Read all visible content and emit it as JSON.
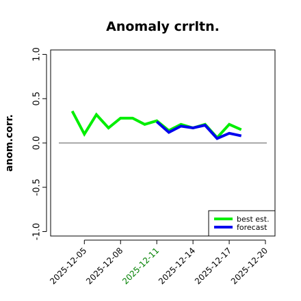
{
  "chart_data": {
    "type": "line",
    "title": "Anomaly crrltn.",
    "ylabel": "anom.corr.",
    "xlabel": "",
    "ylim": [
      -1.05,
      1.05
    ],
    "yticks": [
      -1.0,
      -0.5,
      0.0,
      0.5,
      1.0
    ],
    "ytick_labels": [
      "-1.0",
      "-0.5",
      "0.0",
      "0.5",
      "1.0"
    ],
    "x": [
      "2025-12-04",
      "2025-12-05",
      "2025-12-06",
      "2025-12-07",
      "2025-12-08",
      "2025-12-09",
      "2025-12-10",
      "2025-12-11",
      "2025-12-12",
      "2025-12-13",
      "2025-12-14",
      "2025-12-15",
      "2025-12-16",
      "2025-12-17",
      "2025-12-18"
    ],
    "xticks": [
      "2025-12-05",
      "2025-12-08",
      "2025-12-11",
      "2025-12-14",
      "2025-12-17",
      "2025-12-20"
    ],
    "xtick_labels": [
      "2025-12-05",
      "2025-12-08",
      "2025-12-11",
      "2025-12-14",
      "2025-12-17",
      "2025-12-20"
    ],
    "xtick_colors": [
      "#000000",
      "#000000",
      "#008000",
      "#000000",
      "#000000",
      "#000000"
    ],
    "x_range": [
      "2025-12-03",
      "2025-12-20"
    ],
    "reference_line": 0.0,
    "grid": false,
    "legend_position": "bottom-right",
    "series": [
      {
        "name": "best est.",
        "color": "#00ee00",
        "values": [
          0.36,
          0.1,
          0.32,
          0.17,
          0.28,
          0.28,
          0.21,
          0.25,
          0.14,
          0.21,
          0.17,
          0.21,
          0.06,
          0.21,
          0.15
        ]
      },
      {
        "name": "forecast",
        "color": "#0000ee",
        "values": [
          null,
          null,
          null,
          null,
          null,
          null,
          null,
          0.24,
          0.12,
          0.19,
          0.17,
          0.2,
          0.05,
          0.11,
          0.08
        ]
      }
    ]
  }
}
